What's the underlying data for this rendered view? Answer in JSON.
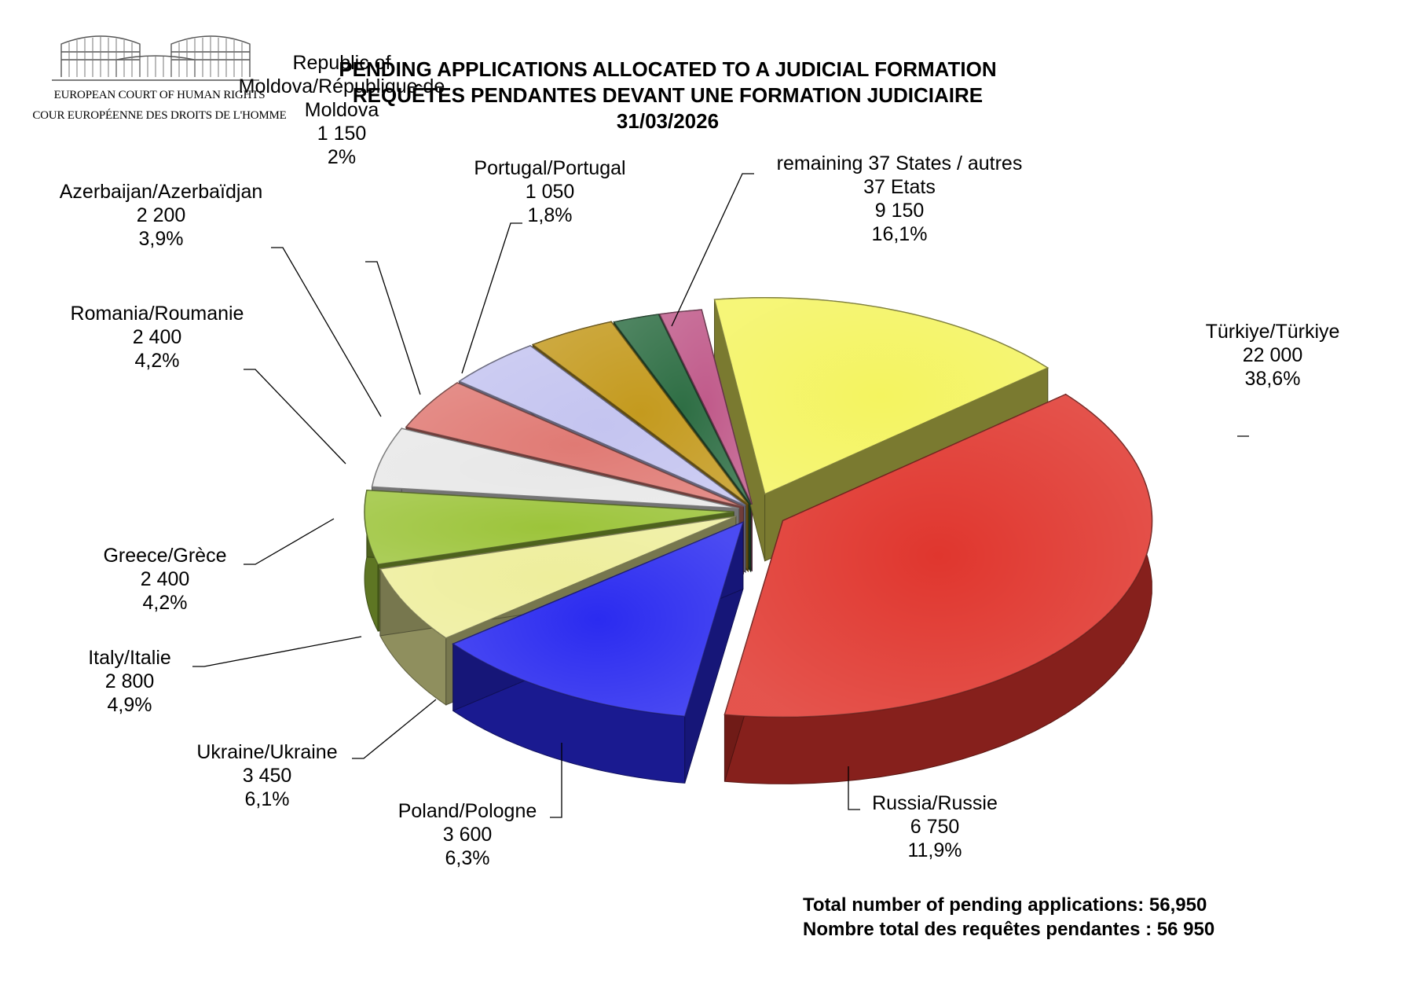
{
  "logo": {
    "line1": "EUROPEAN COURT OF HUMAN RIGHTS",
    "line2": "COUR EUROPÉENNE DES DROITS DE L'HOMME"
  },
  "header": {
    "title_en": "PENDING APPLICATIONS ALLOCATED TO A JUDICIAL FORMATION",
    "title_fr": "REQUÊTES PENDANTES DEVANT UNE FORMATION JUDICIAIRE",
    "date": "31/03/2026"
  },
  "totals": {
    "en": "Total number of pending applications:  56,950",
    "fr": "Nombre total des requêtes pendantes : 56 950"
  },
  "chart_data": {
    "type": "pie",
    "title": "PENDING APPLICATIONS ALLOCATED TO A JUDICIAL FORMATION",
    "slices": [
      {
        "label": "Türkiye/Türkiye",
        "value": 22000,
        "value_text": "22 000",
        "percent": "38,6%",
        "color": "#e0362e"
      },
      {
        "label": "Russia/Russie",
        "value": 6750,
        "value_text": "6 750",
        "percent": "11,9%",
        "color": "#2b2bf0"
      },
      {
        "label": "Poland/Pologne",
        "value": 3600,
        "value_text": "3 600",
        "percent": "6,3%",
        "color": "#eeee9c"
      },
      {
        "label": "Ukraine/Ukraine",
        "value": 3450,
        "value_text": "3 450",
        "percent": "6,1%",
        "color": "#9cc43a"
      },
      {
        "label": "Italy/Italie",
        "value": 2800,
        "value_text": "2 800",
        "percent": "4,9%",
        "color": "#e8e8e8"
      },
      {
        "label": "Greece/Grèce",
        "value": 2400,
        "value_text": "2 400",
        "percent": "4,2%",
        "color": "#e07a74"
      },
      {
        "label": "Romania/Roumanie",
        "value": 2400,
        "value_text": "2 400",
        "percent": "4,2%",
        "color": "#c4c4f0"
      },
      {
        "label": "Azerbaijan/Azerbaïdjan",
        "value": 2200,
        "value_text": "2 200",
        "percent": "3,9%",
        "color": "#c49a1e"
      },
      {
        "label": "Republic of Moldova/République de Moldova",
        "value": 1150,
        "value_text": "1 150",
        "percent": "2%",
        "color": "#2e6e44"
      },
      {
        "label": "Portugal/Portugal",
        "value": 1050,
        "value_text": "1 050",
        "percent": "1,8%",
        "color": "#c05a8a"
      },
      {
        "label": "remaining 37 States / autres 37 Etats",
        "value": 9150,
        "value_text": "9 150",
        "percent": "16,1%",
        "color": "#f4f460"
      }
    ]
  }
}
